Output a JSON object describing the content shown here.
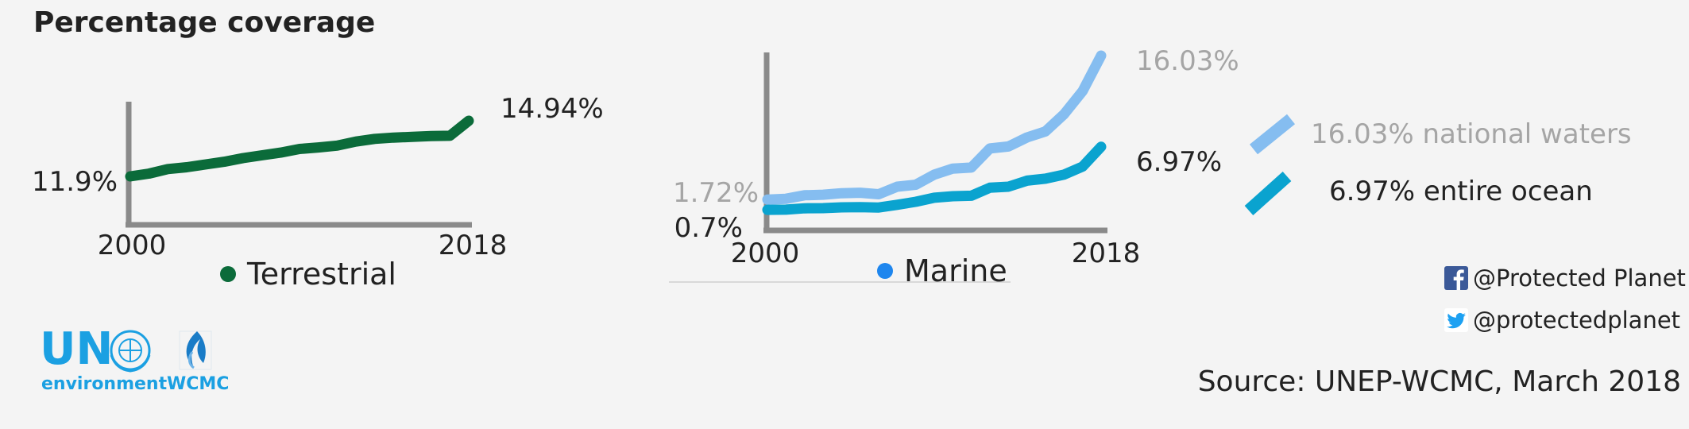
{
  "title": "Percentage coverage",
  "colors": {
    "terrestrial": "#0b6b3a",
    "national_waters": "#85bdf0",
    "entire_ocean": "#0aa3cf",
    "marine_dot": "#1e86ee",
    "axis": "#8a8a8a",
    "muted_text": "#a5a5a5"
  },
  "chart_data": [
    {
      "type": "line",
      "x": [
        2000,
        2001,
        2002,
        2003,
        2004,
        2005,
        2006,
        2007,
        2008,
        2009,
        2010,
        2011,
        2012,
        2013,
        2014,
        2015,
        2016,
        2017,
        2018
      ],
      "series": [
        {
          "name": "",
          "values": [
            11.9,
            12.05,
            12.3,
            12.4,
            12.55,
            12.7,
            12.9,
            13.05,
            13.2,
            13.4,
            13.48,
            13.58,
            13.8,
            13.95,
            14.02,
            14.06,
            14.1,
            14.12,
            14.94
          ],
          "color": "#0b6b3a"
        }
      ],
      "xtick_labels": [
        "2000",
        "2018"
      ],
      "start_label": "11.9%",
      "end_label": "14.94%",
      "legend": "Terrestrial",
      "grid": false
    },
    {
      "type": "line",
      "x": [
        2000,
        2001,
        2002,
        2003,
        2004,
        2005,
        2006,
        2007,
        2008,
        2009,
        2010,
        2011,
        2012,
        2013,
        2014,
        2015,
        2016,
        2017,
        2018
      ],
      "series": [
        {
          "name": "16.03% national waters",
          "values": [
            1.72,
            1.8,
            2.15,
            2.2,
            2.35,
            2.4,
            2.25,
            3.0,
            3.2,
            4.2,
            4.8,
            4.9,
            6.8,
            7.0,
            7.9,
            8.5,
            10.2,
            12.5,
            16.03
          ],
          "color": "#85bdf0"
        },
        {
          "name": "6.97% entire ocean",
          "values": [
            0.7,
            0.72,
            0.85,
            0.87,
            0.95,
            0.97,
            0.93,
            1.2,
            1.5,
            1.9,
            2.05,
            2.1,
            2.9,
            3.0,
            3.6,
            3.8,
            4.2,
            5.0,
            6.97
          ],
          "color": "#0aa3cf"
        }
      ],
      "xtick_labels": [
        "2000",
        "2018"
      ],
      "start_labels": [
        "1.72%",
        "0.7%"
      ],
      "end_labels": [
        "16.03%",
        "6.97%"
      ],
      "legend": "Marine",
      "grid": false
    }
  ],
  "logos": {
    "un_text": "UN",
    "environment": "environment",
    "wcmc": "WCMC"
  },
  "social": {
    "facebook": "@Protected Planet",
    "twitter": "@protectedplanet"
  },
  "source": "Source: UNEP-WCMC, March 2018"
}
